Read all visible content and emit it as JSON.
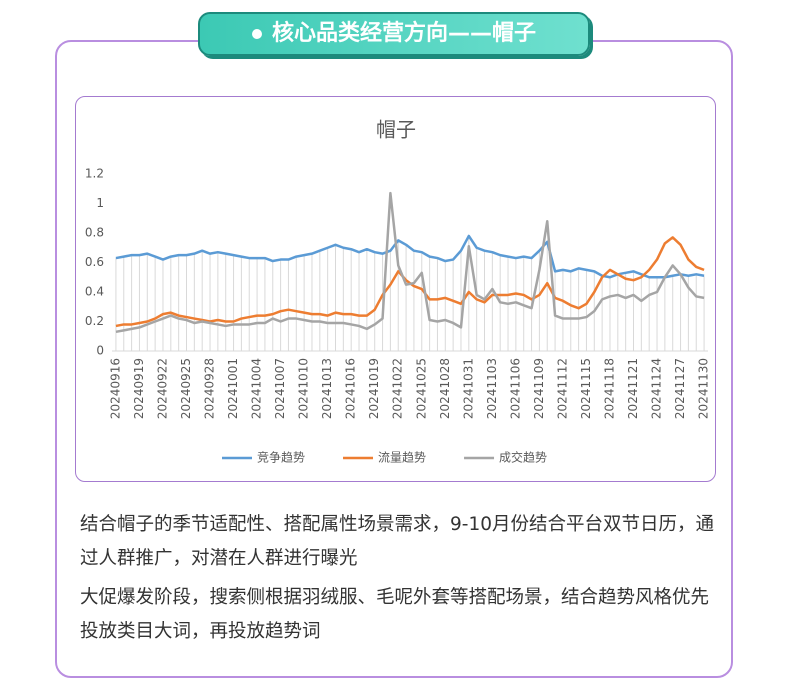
{
  "header": {
    "title": "核心品类经营方向——帽子"
  },
  "chart_data": {
    "type": "line",
    "title": "帽子",
    "categories": [
      "20240916",
      null,
      null,
      "20240919",
      null,
      null,
      "20240922",
      null,
      null,
      "20240925",
      null,
      null,
      "20240928",
      null,
      null,
      "20241001",
      null,
      null,
      "20241004",
      null,
      null,
      "20241007",
      null,
      null,
      "20241010",
      null,
      null,
      "20241013",
      null,
      null,
      "20241016",
      null,
      null,
      "20241019",
      null,
      null,
      "20241022",
      null,
      null,
      "20241025",
      null,
      null,
      "20241028",
      null,
      null,
      "20241031",
      null,
      null,
      "20241103",
      null,
      null,
      "20241106",
      null,
      null,
      "20241109",
      null,
      null,
      "20241112",
      null,
      null,
      "20241115",
      null,
      null,
      "20241118",
      null,
      null,
      "20241121",
      null,
      null,
      "20241124",
      null,
      null,
      "20241127",
      null,
      null,
      "20241130"
    ],
    "series": [
      {
        "name": "竞争趋势",
        "color": "#5b9bd5",
        "values": [
          0.63,
          0.64,
          0.65,
          0.65,
          0.66,
          0.64,
          0.62,
          0.64,
          0.65,
          0.65,
          0.66,
          0.68,
          0.66,
          0.67,
          0.66,
          0.65,
          0.64,
          0.63,
          0.63,
          0.63,
          0.61,
          0.62,
          0.62,
          0.64,
          0.65,
          0.66,
          0.68,
          0.7,
          0.72,
          0.7,
          0.69,
          0.67,
          0.69,
          0.67,
          0.66,
          0.68,
          0.75,
          0.72,
          0.68,
          0.67,
          0.64,
          0.63,
          0.61,
          0.62,
          0.68,
          0.78,
          0.7,
          0.68,
          0.67,
          0.65,
          0.64,
          0.63,
          0.64,
          0.63,
          0.68,
          0.74,
          0.54,
          0.55,
          0.54,
          0.56,
          0.55,
          0.54,
          0.51,
          0.5,
          0.52,
          0.53,
          0.54,
          0.52,
          0.5,
          0.5,
          0.5,
          0.51,
          0.52,
          0.51,
          0.52,
          0.51
        ]
      },
      {
        "name": "流量趋势",
        "color": "#ed7d31",
        "values": [
          0.17,
          0.18,
          0.18,
          0.19,
          0.2,
          0.22,
          0.25,
          0.26,
          0.24,
          0.23,
          0.22,
          0.21,
          0.2,
          0.21,
          0.2,
          0.2,
          0.22,
          0.23,
          0.24,
          0.24,
          0.25,
          0.27,
          0.28,
          0.27,
          0.26,
          0.25,
          0.25,
          0.24,
          0.26,
          0.25,
          0.25,
          0.24,
          0.24,
          0.28,
          0.38,
          0.45,
          0.54,
          0.48,
          0.44,
          0.42,
          0.35,
          0.35,
          0.36,
          0.34,
          0.32,
          0.4,
          0.35,
          0.33,
          0.38,
          0.38,
          0.38,
          0.39,
          0.38,
          0.35,
          0.38,
          0.46,
          0.36,
          0.34,
          0.31,
          0.29,
          0.32,
          0.4,
          0.5,
          0.55,
          0.52,
          0.49,
          0.48,
          0.5,
          0.55,
          0.62,
          0.73,
          0.77,
          0.72,
          0.62,
          0.57,
          0.55
        ]
      },
      {
        "name": "成交趋势",
        "color": "#a5a5a5",
        "values": [
          0.13,
          0.14,
          0.15,
          0.16,
          0.18,
          0.2,
          0.22,
          0.24,
          0.22,
          0.21,
          0.19,
          0.2,
          0.19,
          0.18,
          0.17,
          0.18,
          0.18,
          0.18,
          0.19,
          0.19,
          0.22,
          0.2,
          0.22,
          0.22,
          0.21,
          0.2,
          0.2,
          0.19,
          0.19,
          0.19,
          0.18,
          0.17,
          0.15,
          0.18,
          0.22,
          1.07,
          0.58,
          0.45,
          0.46,
          0.53,
          0.21,
          0.2,
          0.21,
          0.19,
          0.16,
          0.71,
          0.38,
          0.35,
          0.42,
          0.33,
          0.32,
          0.33,
          0.31,
          0.29,
          0.55,
          0.88,
          0.24,
          0.22,
          0.22,
          0.22,
          0.23,
          0.27,
          0.35,
          0.37,
          0.38,
          0.36,
          0.38,
          0.34,
          0.38,
          0.4,
          0.5,
          0.58,
          0.52,
          0.43,
          0.37,
          0.36
        ]
      }
    ],
    "ylim": [
      0,
      1.2
    ],
    "yticks": [
      0,
      0.2,
      0.4,
      0.6,
      0.8,
      1,
      1.2
    ],
    "legend": "bottom",
    "drop_lines": true
  },
  "paragraphs": [
    "结合帽子的季节适配性、搭配属性场景需求，9-10月份结合平台双节日历，通过人群推广，对潜在人群进行曝光",
    "大促爆发阶段，搜索侧根据羽绒服、毛呢外套等搭配场景，结合趋势风格优先投放类目大词，再投放趋势词"
  ]
}
